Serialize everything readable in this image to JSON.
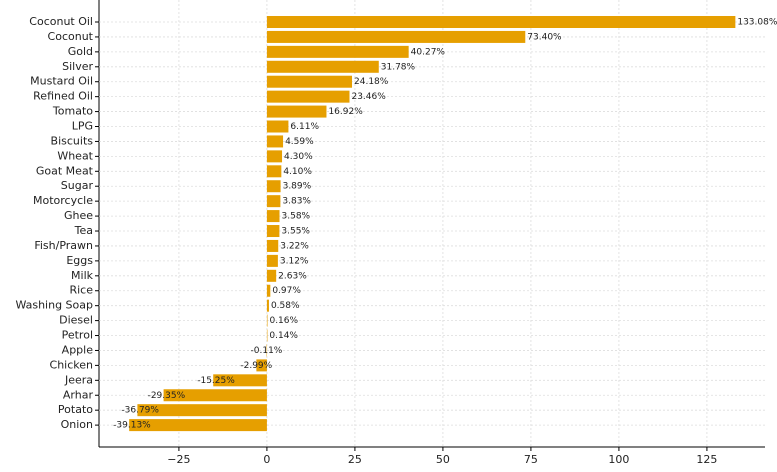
{
  "chart_data": {
    "type": "barh",
    "categories": [
      "Coconut Oil",
      "Coconut",
      "Gold",
      "Silver",
      "Mustard Oil",
      "Refined Oil",
      "Tomato",
      "LPG",
      "Biscuits",
      "Wheat",
      "Goat Meat",
      "Sugar",
      "Motorcycle",
      "Ghee",
      "Tea",
      "Fish/Prawn",
      "Eggs",
      "Milk",
      "Rice",
      "Washing Soap",
      "Diesel",
      "Petrol",
      "Apple",
      "Chicken",
      "Jeera",
      "Arhar",
      "Potato",
      "Onion"
    ],
    "values": [
      133.08,
      73.4,
      40.27,
      31.78,
      24.18,
      23.46,
      16.92,
      6.11,
      4.59,
      4.3,
      4.1,
      3.89,
      3.83,
      3.58,
      3.55,
      3.22,
      3.12,
      2.63,
      0.97,
      0.58,
      0.16,
      0.14,
      -0.11,
      -2.99,
      -15.25,
      -29.35,
      -36.79,
      -39.13
    ],
    "value_labels": [
      "133.08%",
      "73.40%",
      "40.27%",
      "31.78%",
      "24.18%",
      "23.46%",
      "16.92%",
      "6.11%",
      "4.59%",
      "4.30%",
      "4.10%",
      "3.89%",
      "3.83%",
      "3.58%",
      "3.55%",
      "3.22%",
      "3.12%",
      "2.63%",
      "0.97%",
      "0.58%",
      "0.16%",
      "0.14%",
      "-0.11%",
      "-2.99%",
      "-15.25%",
      "-29.35%",
      "-36.79%",
      "-39.13%"
    ],
    "color": "#e69f00",
    "xlim": [
      -47.7,
      141.5
    ],
    "xticks": [
      {
        "value": -25,
        "label": "−25"
      },
      0,
      25,
      50,
      75,
      100,
      125
    ],
    "grid": true
  }
}
